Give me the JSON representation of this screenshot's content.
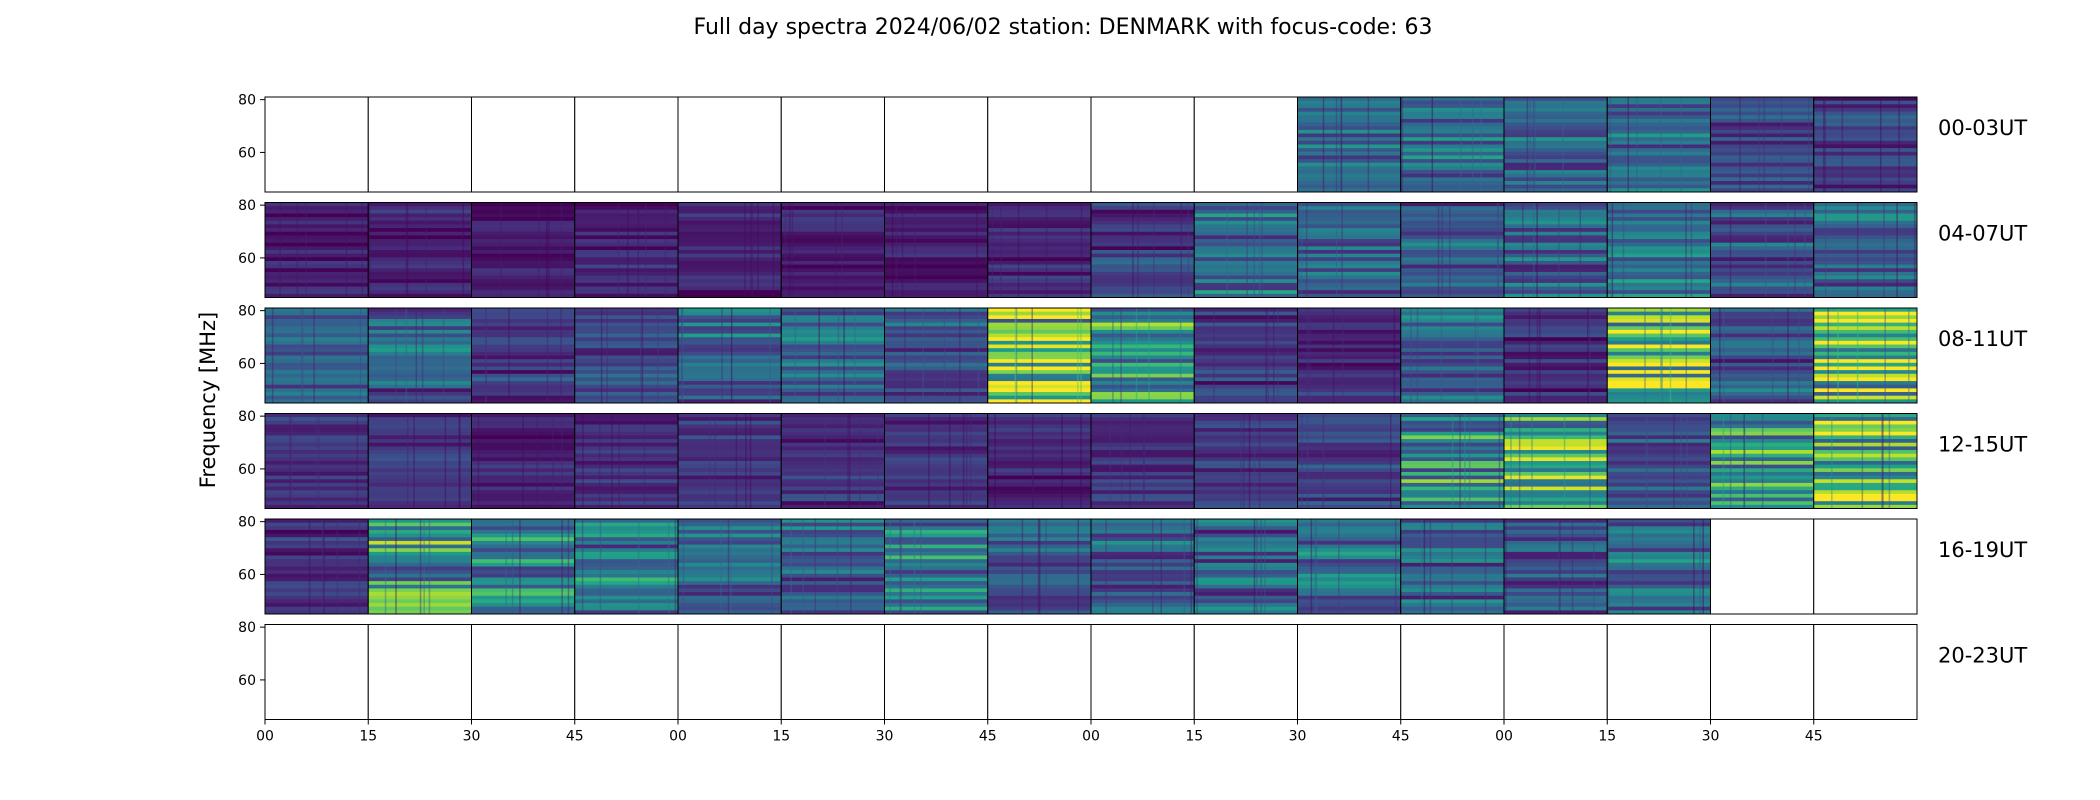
{
  "chart_data": {
    "type": "heatmap",
    "title": "Full day spectra 2024/06/02 station: DENMARK with focus-code: 63",
    "ylabel": "Frequency [MHz]",
    "xlabel": "",
    "ylim": [
      45,
      81
    ],
    "y_ticks": [
      "80",
      "60"
    ],
    "x_ticks": [
      "00",
      "15",
      "30",
      "45",
      "00",
      "15",
      "30",
      "45",
      "00",
      "15",
      "30",
      "45",
      "00",
      "15",
      "30",
      "45"
    ],
    "colormap": "viridis",
    "grid": false,
    "panels_per_row": 16,
    "panel_minutes": 15,
    "rows": [
      {
        "label": "00-03UT",
        "intensity": [
          null,
          null,
          null,
          null,
          null,
          null,
          null,
          null,
          null,
          null,
          0.35,
          0.4,
          0.35,
          0.35,
          0.25,
          0.2
        ]
      },
      {
        "label": "04-07UT",
        "intensity": [
          0.1,
          0.1,
          0.08,
          0.1,
          0.1,
          0.1,
          0.1,
          0.12,
          0.2,
          0.4,
          0.35,
          0.3,
          0.35,
          0.4,
          0.3,
          0.35
        ]
      },
      {
        "label": "08-11UT",
        "intensity": [
          0.3,
          0.35,
          0.2,
          0.25,
          0.35,
          0.35,
          0.3,
          0.85,
          0.6,
          0.2,
          0.15,
          0.35,
          0.15,
          0.8,
          0.3,
          0.75
        ]
      },
      {
        "label": "12-15UT",
        "intensity": [
          0.15,
          0.15,
          0.1,
          0.12,
          0.15,
          0.15,
          0.15,
          0.12,
          0.15,
          0.2,
          0.2,
          0.6,
          0.7,
          0.3,
          0.6,
          0.75
        ]
      },
      {
        "label": "16-19UT",
        "intensity": [
          0.15,
          0.6,
          0.5,
          0.45,
          0.35,
          0.35,
          0.45,
          0.35,
          0.35,
          0.35,
          0.4,
          0.35,
          0.3,
          0.35,
          null,
          null
        ]
      },
      {
        "label": "20-23UT",
        "intensity": [
          null,
          null,
          null,
          null,
          null,
          null,
          null,
          null,
          null,
          null,
          null,
          null,
          null,
          null,
          null,
          null
        ]
      }
    ]
  }
}
